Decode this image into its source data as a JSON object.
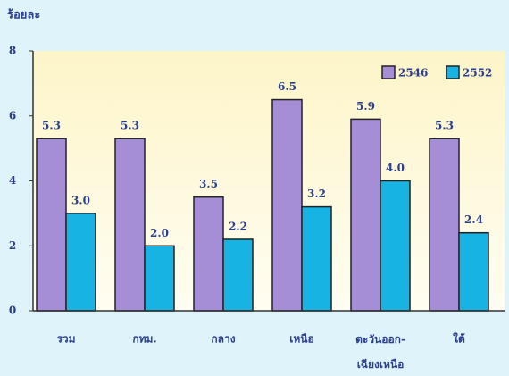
{
  "chart_data": {
    "type": "bar",
    "y_label": "ร้อยละ",
    "categories": [
      "รวม",
      "กทม.",
      "กลาง",
      "เหนือ",
      "ตะวันออก-เฉียงเหนือ",
      "ใต้"
    ],
    "series": [
      {
        "name": "2546",
        "color": "#a68ed6",
        "values": [
          5.3,
          5.3,
          3.5,
          6.5,
          5.9,
          5.3
        ]
      },
      {
        "name": "2552",
        "color": "#17b4e3",
        "values": [
          3.0,
          2.0,
          2.2,
          3.2,
          4.0,
          2.4
        ],
        "value_labels": [
          "3.0",
          "2.0",
          "2.2",
          "3.2",
          "4.0",
          "2.4"
        ]
      }
    ],
    "ylim": [
      0,
      8
    ],
    "yticks": [
      0,
      2,
      4,
      6,
      8
    ],
    "legend": "top-right"
  }
}
